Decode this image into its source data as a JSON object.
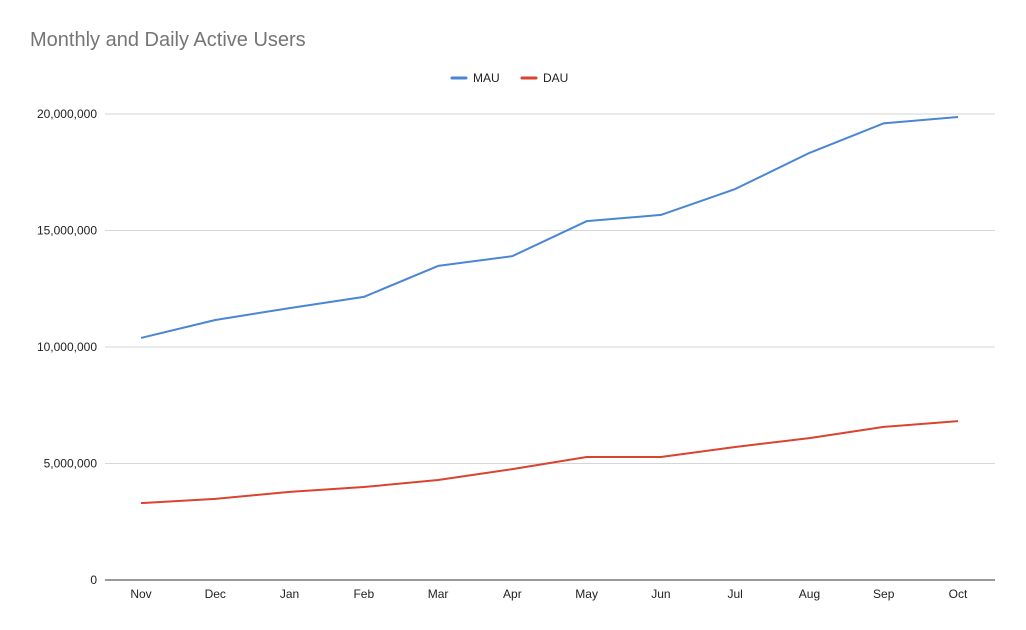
{
  "chart_data": {
    "type": "line",
    "title": "Monthly and Daily Active Users",
    "xlabel": "",
    "ylabel": "",
    "categories": [
      "Nov",
      "Dec",
      "Jan",
      "Feb",
      "Mar",
      "Apr",
      "May",
      "Jun",
      "Jul",
      "Aug",
      "Sep",
      "Oct"
    ],
    "ylim": [
      0,
      20000000
    ],
    "yticks": [
      0,
      5000000,
      10000000,
      15000000,
      20000000
    ],
    "ytick_labels": [
      "0",
      "5,000,000",
      "10,000,000",
      "15,000,000",
      "20,000,000"
    ],
    "grid": true,
    "legend_position": "top",
    "series": [
      {
        "name": "MAU",
        "color": "#4a86d4",
        "values": [
          10390000,
          11160000,
          11670000,
          12150000,
          13480000,
          13900000,
          15400000,
          15670000,
          16780000,
          18330000,
          19600000,
          19870000
        ]
      },
      {
        "name": "DAU",
        "color": "#d9432f",
        "values": [
          3300000,
          3480000,
          3780000,
          3990000,
          4290000,
          4760000,
          5280000,
          5280000,
          5710000,
          6090000,
          6570000,
          6820000
        ]
      }
    ]
  }
}
